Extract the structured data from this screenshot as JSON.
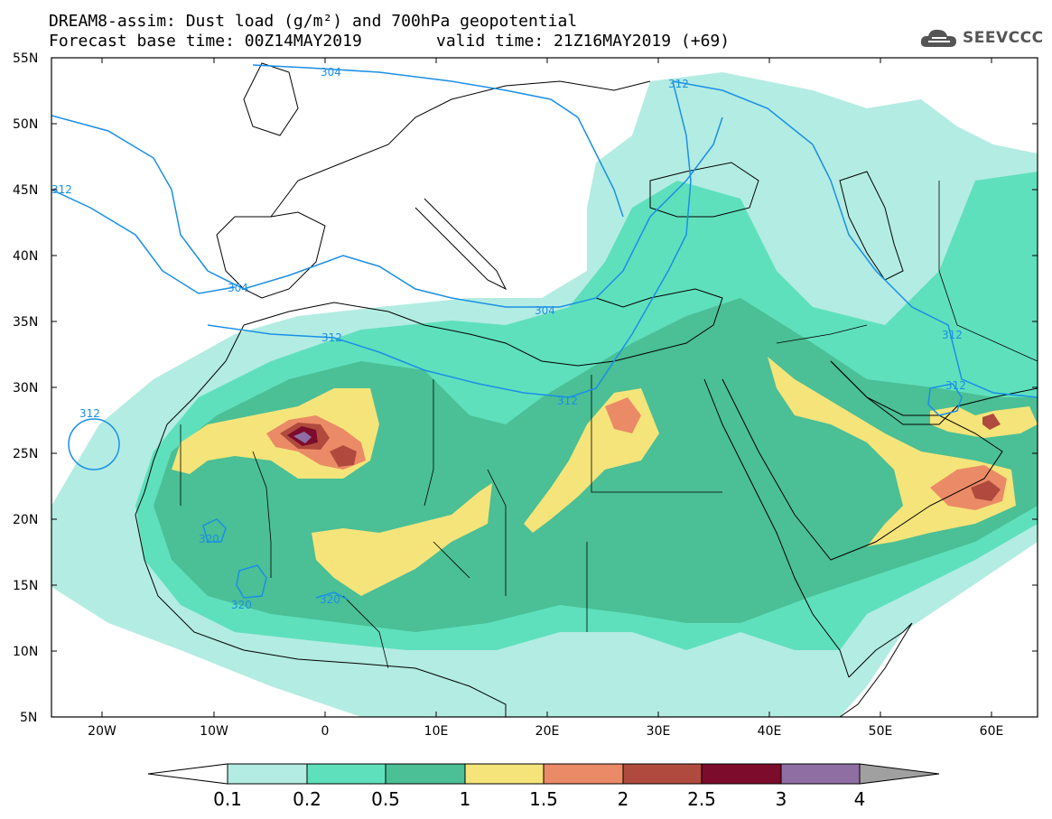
{
  "header": {
    "title_line1": "DREAM8-assim: Dust load (g/m²) and 700hPa geopotential",
    "title_line2_base": "Forecast base time: 00Z14MAY2019",
    "title_line2_valid": "valid time: 21Z16MAY2019 (+69)",
    "logo_text": "SEEVCCC",
    "logo_icon": "cloud-icon"
  },
  "map": {
    "lat_labels": [
      "55N",
      "50N",
      "45N",
      "40N",
      "35N",
      "30N",
      "25N",
      "20N",
      "15N",
      "10N",
      "5N"
    ],
    "lon_labels": [
      "20W",
      "10W",
      "0",
      "10E",
      "20E",
      "30E",
      "40E",
      "50E",
      "60E"
    ],
    "contour_labels": [
      "304",
      "312",
      "304",
      "304",
      "312",
      "312",
      "312",
      "312",
      "312",
      "320",
      "320",
      "320",
      "312"
    ],
    "contour_color": "#1a8fe6"
  },
  "colorbar": {
    "labels": [
      "0.1",
      "0.2",
      "0.5",
      "1",
      "1.5",
      "2",
      "2.5",
      "3",
      "4"
    ],
    "colors": [
      "#ffffff",
      "#b3ece2",
      "#5fe0bc",
      "#4bbf95",
      "#f5e47a",
      "#eb8a66",
      "#b04a3e",
      "#7d0c2c",
      "#8f6fa3",
      "#a0a0a0"
    ]
  }
}
